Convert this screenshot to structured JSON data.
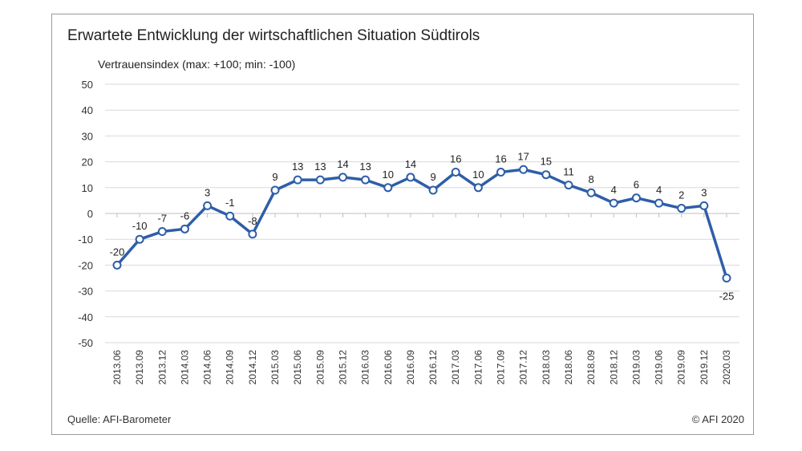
{
  "chart_data": {
    "type": "line",
    "title": "Erwartete Entwicklung der wirtschaftlichen Situation Südtirols",
    "ylabel": "Vertrauensindex (max: +100; min: -100)",
    "xlabel": "",
    "ylim": [
      -50,
      50
    ],
    "yticks": [
      50,
      40,
      30,
      20,
      10,
      0,
      -10,
      -20,
      -30,
      -40,
      -50
    ],
    "grid": true,
    "line_color": "#2e5ea8",
    "categories": [
      "2013.06",
      "2013.09",
      "2013.12",
      "2014.03",
      "2014.06",
      "2014.09",
      "2014.12",
      "2015.03",
      "2015.06",
      "2015.09",
      "2015.12",
      "2016.03",
      "2016.06",
      "2016.09",
      "2016.12",
      "2017.03",
      "2017.06",
      "2017.09",
      "2017.12",
      "2018.03",
      "2018.06",
      "2018.09",
      "2018.12",
      "2019.03",
      "2019.06",
      "2019.09",
      "2019.12",
      "2020.03"
    ],
    "values": [
      -20,
      -10,
      -7,
      -6,
      3,
      -1,
      -8,
      9,
      13,
      13,
      14,
      13,
      10,
      14,
      9,
      16,
      10,
      16,
      17,
      15,
      11,
      8,
      4,
      6,
      4,
      2,
      3,
      -25
    ],
    "data_labels": [
      "-20",
      "-10",
      "-7",
      "-6",
      "3",
      "-1",
      "-8",
      "9",
      "13",
      "13",
      "14",
      "13",
      "10",
      "14",
      "9",
      "16",
      "10",
      "16",
      "17",
      "15",
      "11",
      "8",
      "4",
      "6",
      "4",
      "2",
      "3",
      "-25"
    ]
  },
  "footer": {
    "source": "Quelle: AFI-Barometer",
    "copyright": "© AFI 2020"
  }
}
